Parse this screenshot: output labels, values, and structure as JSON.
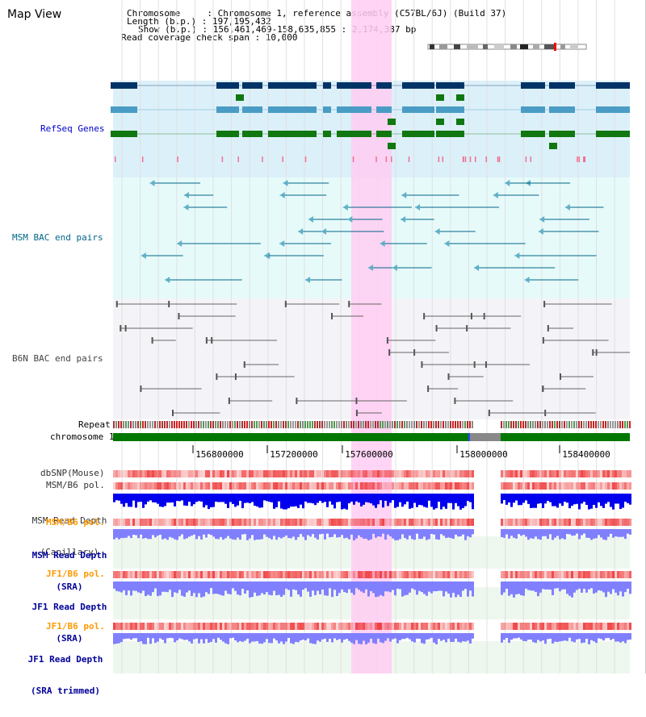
{
  "view": {
    "title": "Map View"
  },
  "header": {
    "chromosome_line": "Chromosome     : Chromosome 1, reference assembly (C57BL/6J) (Build 37)",
    "length_line": "Length (b.p.) : 197,195,432",
    "show_line": "Show (b.p.) : 156,461,469-158,635,855 : 2,174,387 bp",
    "coverage_line": "Read coverage check span : 10,000"
  },
  "tracks": {
    "refseq": "RefSeq Genes",
    "msm_bac": "MSM BAC end pairs",
    "b6n_bac": "B6N BAC end pairs",
    "repeat": "Repeat",
    "chromosome": "chromosome 1",
    "dbsnp": "dbSNP(Mouse)",
    "msm_b6_pol_1": "MSM/B6 pol.",
    "msm_depth_cap_1": "MSM Read Depth",
    "msm_depth_cap_2": "(Capillary)",
    "msm_b6_pol_2": "MSM/B6 pol.",
    "msm_depth_sra_1": "MSM Read Depth",
    "msm_depth_sra_2": "(SRA)",
    "jf1_b6_pol_1": "JF1/B6 pol.",
    "jf1_depth_sra_1": "JF1 Read Depth",
    "jf1_depth_sra_2": "(SRA)",
    "jf1_b6_pol_2": "JF1/B6 pol.",
    "jf1_depth_trim_1": "JF1 Read Depth",
    "jf1_depth_trim_2": "(SRA trimmed)"
  },
  "axis": {
    "ticks": [
      "156800000",
      "157200000",
      "157600000",
      "158000000",
      "158400000"
    ]
  },
  "colors": {
    "refseq_label": "#0000cc",
    "msm_bac_label": "#006688",
    "b6n_bac_label": "#444444",
    "pol_label": "#ff9900",
    "sra_label": "#000099",
    "highlight": "#ffccf2",
    "chromosome": "#007700",
    "depth_capillary": "#0000ee",
    "depth_sra": "#8080ff"
  }
}
